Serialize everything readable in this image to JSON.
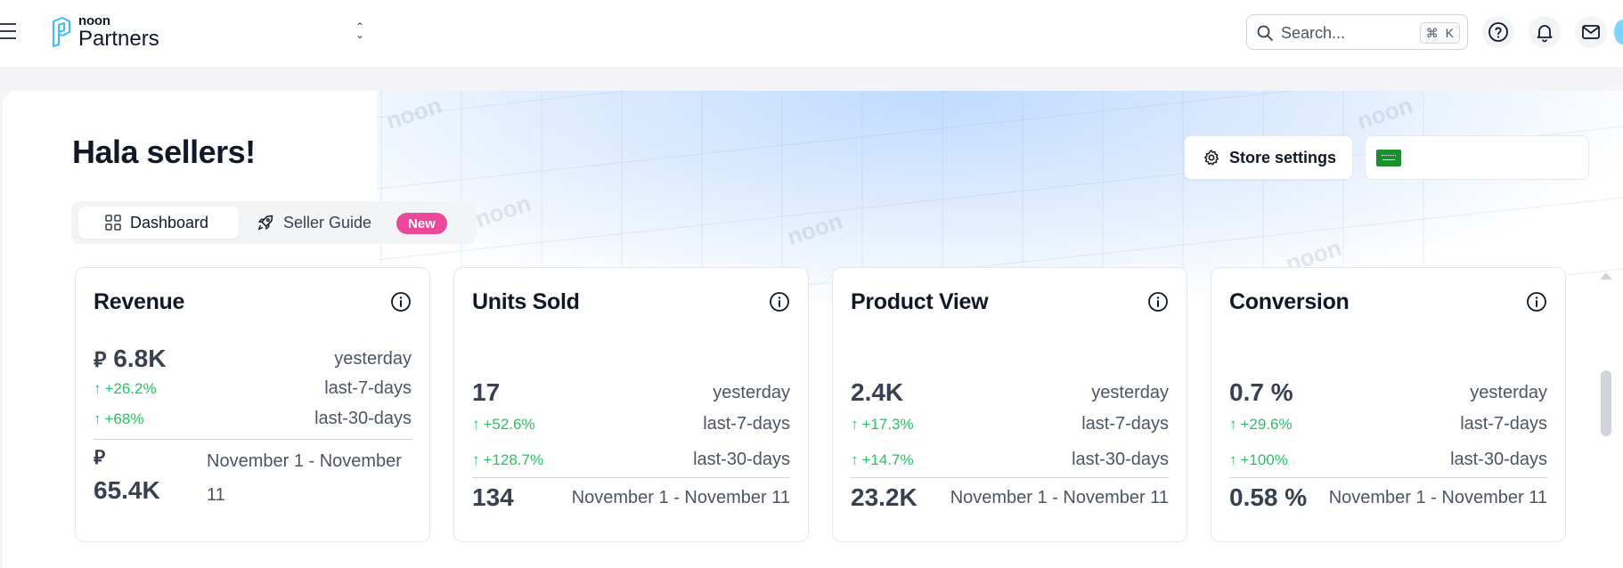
{
  "header": {
    "logo_small": "noon",
    "logo_big": "Partners",
    "search_placeholder": "Search...",
    "search_shortcut_key": "K"
  },
  "hero": {
    "greeting": "Hala sellers!",
    "store_settings_label": "Store settings",
    "watermark": "noon"
  },
  "tabs": [
    {
      "label": "Dashboard",
      "active": true
    },
    {
      "label": "Seller Guide",
      "active": false,
      "badge": "New"
    }
  ],
  "colors": {
    "accent_green": "#22c55e",
    "badge_pink": "#ec4899",
    "flag_green": "#1a8f2e"
  },
  "cards": [
    {
      "title": "Revenue",
      "currency_symbol": "⃁",
      "yesterday_value": "6.8K",
      "yesterday_label": "yesterday",
      "change_7": "+26.2%",
      "label_7": "last-7-days",
      "change_30": "+68%",
      "label_30": "last-30-days",
      "period_value": "65.4K",
      "period_label": "November 1 - November 11"
    },
    {
      "title": "Units Sold",
      "yesterday_value": "17",
      "yesterday_label": "yesterday",
      "change_7": "+52.6%",
      "label_7": "last-7-days",
      "change_30": "+128.7%",
      "label_30": "last-30-days",
      "period_value": "134",
      "period_label": "November 1 - November 11"
    },
    {
      "title": "Product View",
      "yesterday_value": "2.4K",
      "yesterday_label": "yesterday",
      "change_7": "+17.3%",
      "label_7": "last-7-days",
      "change_30": "+14.7%",
      "label_30": "last-30-days",
      "period_value": "23.2K",
      "period_label": "November 1 - November 11"
    },
    {
      "title": "Conversion",
      "yesterday_value": "0.7 %",
      "yesterday_label": "yesterday",
      "change_7": "+29.6%",
      "label_7": "last-7-days",
      "change_30": "+100%",
      "label_30": "last-30-days",
      "period_value": "0.58 %",
      "period_label": "November 1 - November 11"
    }
  ]
}
